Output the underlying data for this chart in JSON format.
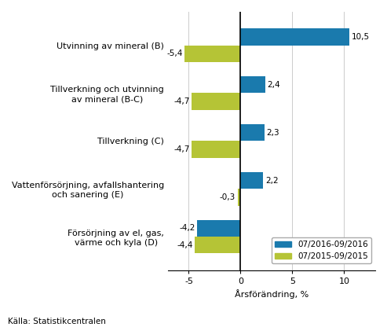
{
  "categories": [
    "Försörjning av el, gas,\nvärme och kyla (D)",
    "Vattenförsörjning, avfallshantering\noch sanering (E)",
    "Tillverkning (C)",
    "Tillverkning och utvinning\nav mineral (B-C)",
    "Utvinning av mineral (B)"
  ],
  "values_2016": [
    -4.2,
    2.2,
    2.3,
    2.4,
    10.5
  ],
  "values_2015": [
    -4.4,
    -0.3,
    -4.7,
    -4.7,
    -5.4
  ],
  "labels_2016": [
    "-4,2",
    "2,2",
    "2,3",
    "2,4",
    "10,5"
  ],
  "labels_2015": [
    "-4,4",
    "-0,3",
    "-4,7",
    "-4,7",
    "-5,4"
  ],
  "color_2016": "#1a7aad",
  "color_2015": "#b5c436",
  "legend_2016": "07/2016-09/2016",
  "legend_2015": "07/2015-09/2015",
  "xlabel": "Årsförändring, %",
  "xlim": [
    -7,
    13
  ],
  "xticks": [
    -5,
    0,
    5,
    10
  ],
  "source": "Källa: Statistikcentralen",
  "bar_height": 0.35,
  "bg_color": "#ffffff",
  "grid_color": "#cccccc"
}
